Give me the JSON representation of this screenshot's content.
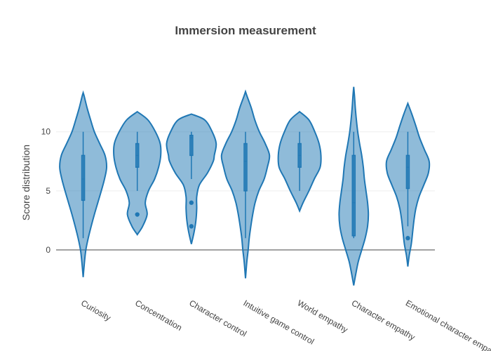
{
  "chart_data": {
    "type": "violin",
    "title": "Immersion measurement",
    "xlabel": "",
    "ylabel": "Score distribution",
    "ylim": [
      -3.8,
      16.4
    ],
    "yticks": [
      0,
      5,
      10
    ],
    "grid": true,
    "color": "#1f77b4",
    "categories": [
      "Curiosity",
      "Concentration",
      "Character control",
      "Intuitive game control",
      "World empathy",
      "Character empathy",
      "Emotional character empathy"
    ],
    "series": [
      {
        "min": -2.3,
        "max": 13.3,
        "q1": 4.2,
        "median": 6,
        "q3": 8,
        "whisker_low": 1,
        "whisker_high": 10,
        "outliers": [],
        "profile": [
          [
            -2.3,
            0
          ],
          [
            -1,
            0.05
          ],
          [
            0,
            0.1
          ],
          [
            1,
            0.19
          ],
          [
            2,
            0.3
          ],
          [
            3,
            0.42
          ],
          [
            4,
            0.55
          ],
          [
            5,
            0.68
          ],
          [
            6,
            0.8
          ],
          [
            7,
            0.88
          ],
          [
            8,
            0.82
          ],
          [
            9,
            0.62
          ],
          [
            10,
            0.42
          ],
          [
            11,
            0.28
          ],
          [
            12,
            0.15
          ],
          [
            13,
            0.04
          ],
          [
            13.3,
            0
          ]
        ]
      },
      {
        "min": 1.3,
        "max": 11.7,
        "q1": 7,
        "median": 8,
        "q3": 9,
        "whisker_low": 5,
        "whisker_high": 10,
        "outliers": [
          3
        ],
        "profile": [
          [
            1.3,
            0
          ],
          [
            2,
            0.2
          ],
          [
            3,
            0.37
          ],
          [
            4,
            0.3
          ],
          [
            5,
            0.42
          ],
          [
            6,
            0.65
          ],
          [
            7,
            0.8
          ],
          [
            8,
            0.88
          ],
          [
            9,
            0.86
          ],
          [
            10,
            0.68
          ],
          [
            11,
            0.4
          ],
          [
            11.7,
            0
          ]
        ]
      },
      {
        "min": 0.5,
        "max": 11.5,
        "q1": 8,
        "median": 9.5,
        "q3": 9.7,
        "whisker_low": 6,
        "whisker_high": 10,
        "outliers": [
          4,
          2
        ],
        "profile": [
          [
            0.5,
            0
          ],
          [
            1.5,
            0.1
          ],
          [
            2.5,
            0.17
          ],
          [
            3.5,
            0.2
          ],
          [
            4.5,
            0.2
          ],
          [
            5.5,
            0.3
          ],
          [
            6.5,
            0.6
          ],
          [
            7.5,
            0.82
          ],
          [
            8,
            0.86
          ],
          [
            9,
            0.93
          ],
          [
            10,
            0.78
          ],
          [
            11,
            0.5
          ],
          [
            11.5,
            0
          ]
        ]
      },
      {
        "min": -2.4,
        "max": 13.4,
        "q1": 5,
        "median": 7.5,
        "q3": 9,
        "whisker_low": 1,
        "whisker_high": 10,
        "outliers": [],
        "profile": [
          [
            -2.4,
            0
          ],
          [
            -1,
            0.05
          ],
          [
            0,
            0.1
          ],
          [
            1,
            0.14
          ],
          [
            2,
            0.2
          ],
          [
            3,
            0.27
          ],
          [
            4,
            0.36
          ],
          [
            5,
            0.5
          ],
          [
            6,
            0.7
          ],
          [
            7,
            0.82
          ],
          [
            8,
            0.9
          ],
          [
            9,
            0.74
          ],
          [
            10,
            0.52
          ],
          [
            11,
            0.35
          ],
          [
            12,
            0.22
          ],
          [
            13,
            0.06
          ],
          [
            13.4,
            0
          ]
        ]
      },
      {
        "min": 3.3,
        "max": 11.7,
        "q1": 7,
        "median": 8,
        "q3": 9,
        "whisker_low": 5,
        "whisker_high": 10,
        "outliers": [],
        "profile": [
          [
            3.3,
            0
          ],
          [
            4,
            0.13
          ],
          [
            5,
            0.35
          ],
          [
            6,
            0.55
          ],
          [
            7,
            0.77
          ],
          [
            8,
            0.8
          ],
          [
            9,
            0.73
          ],
          [
            10,
            0.57
          ],
          [
            11,
            0.35
          ],
          [
            11.7,
            0
          ]
        ]
      },
      {
        "min": -3,
        "max": 13.8,
        "q1": 1.2,
        "median": 4,
        "q3": 8,
        "whisker_low": 1,
        "whisker_high": 10,
        "outliers": [],
        "profile": [
          [
            -3,
            0
          ],
          [
            -2,
            0.08
          ],
          [
            -1,
            0.17
          ],
          [
            0,
            0.3
          ],
          [
            1,
            0.43
          ],
          [
            2,
            0.52
          ],
          [
            3,
            0.55
          ],
          [
            4,
            0.52
          ],
          [
            5,
            0.46
          ],
          [
            6,
            0.4
          ],
          [
            7,
            0.36
          ],
          [
            8,
            0.3
          ],
          [
            9,
            0.22
          ],
          [
            10,
            0.15
          ],
          [
            11,
            0.1
          ],
          [
            12,
            0.06
          ],
          [
            13,
            0.03
          ],
          [
            13.8,
            0
          ]
        ]
      },
      {
        "min": -1.4,
        "max": 12.4,
        "q1": 5.2,
        "median": 7,
        "q3": 8,
        "whisker_low": 2,
        "whisker_high": 10,
        "outliers": [
          1
        ],
        "profile": [
          [
            -1.4,
            0
          ],
          [
            -0.5,
            0.05
          ],
          [
            0.5,
            0.13
          ],
          [
            1.5,
            0.18
          ],
          [
            2.5,
            0.23
          ],
          [
            3.5,
            0.3
          ],
          [
            4.5,
            0.42
          ],
          [
            5.5,
            0.6
          ],
          [
            6.5,
            0.77
          ],
          [
            7.5,
            0.8
          ],
          [
            8.5,
            0.62
          ],
          [
            9.5,
            0.44
          ],
          [
            10.5,
            0.3
          ],
          [
            11.5,
            0.15
          ],
          [
            12.4,
            0
          ]
        ]
      }
    ]
  }
}
